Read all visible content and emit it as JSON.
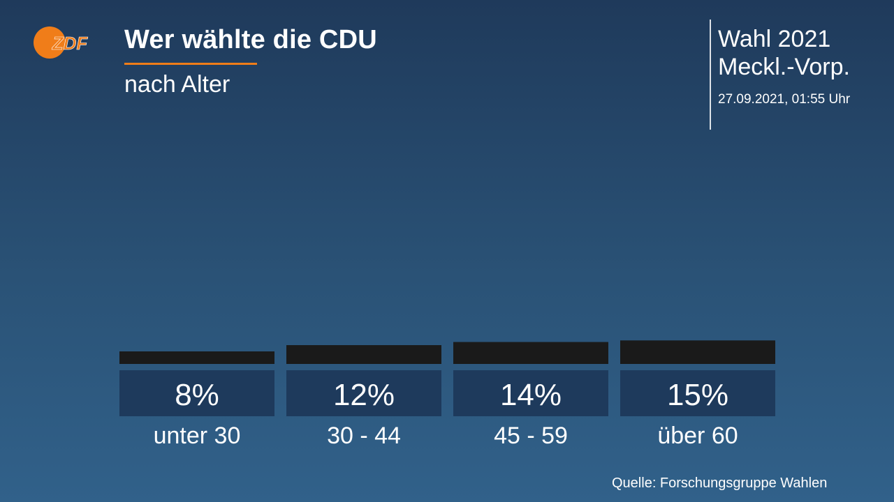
{
  "header": {
    "logo_text": "ZDF",
    "title": "Wer wählte die CDU",
    "subtitle": "nach Alter",
    "election_line1": "Wahl 2021",
    "election_line2": "Meckl.-Vorp.",
    "timestamp": "27.09.2021, 01:55 Uhr"
  },
  "footer": {
    "source": "Quelle: Forschungsgruppe Wahlen"
  },
  "colors": {
    "accent": "#f07d19",
    "bar": "#1a1a1a",
    "label_box": "#1e3a5c",
    "text": "#ffffff"
  },
  "chart_data": {
    "type": "bar",
    "categories": [
      "unter 30",
      "30 - 44",
      "45 - 59",
      "über 60"
    ],
    "values": [
      8,
      12,
      14,
      15
    ],
    "value_labels": [
      "8%",
      "12%",
      "14%",
      "15%"
    ],
    "title": "Wer wählte die CDU",
    "subtitle": "nach Alter",
    "unit": "%",
    "grid": false
  }
}
